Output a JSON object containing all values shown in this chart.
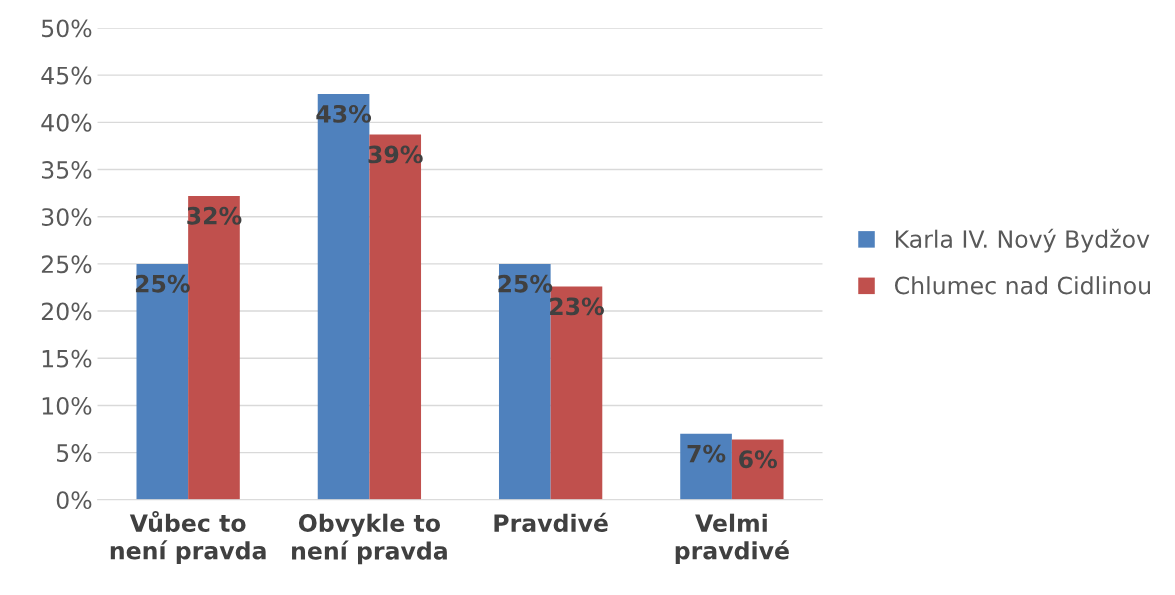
{
  "chart_data": {
    "type": "bar",
    "categories": [
      "Vůbec to\nnení pravda",
      "Obvykle to\nnení pravda",
      "Pravdivé",
      "Velmi\npravdivé"
    ],
    "series": [
      {
        "name": "Karla IV. Nový Bydžov",
        "color": "#4f81bd",
        "values": [
          25.0,
          43.0,
          25.0,
          7.0
        ],
        "value_labels": [
          "25%",
          "43%",
          "25%",
          "7%"
        ]
      },
      {
        "name": "Chlumec nad Cidlinou",
        "color": "#c0504d",
        "values": [
          32.2,
          38.7,
          22.6,
          6.4
        ],
        "value_labels": [
          "32%",
          "39%",
          "23%",
          "6%"
        ]
      }
    ],
    "ylim": [
      0,
      50
    ],
    "yticks": [
      {
        "value": 0,
        "label": "0%"
      },
      {
        "value": 5,
        "label": "5%"
      },
      {
        "value": 10,
        "label": "10%"
      },
      {
        "value": 15,
        "label": "15%"
      },
      {
        "value": 20,
        "label": "20%"
      },
      {
        "value": 25,
        "label": "25%"
      },
      {
        "value": 30,
        "label": "30%"
      },
      {
        "value": 35,
        "label": "35%"
      },
      {
        "value": 40,
        "label": "40%"
      },
      {
        "value": 45,
        "label": "45%"
      },
      {
        "value": 50,
        "label": "50%"
      }
    ],
    "grid": "y",
    "legend": "right"
  }
}
